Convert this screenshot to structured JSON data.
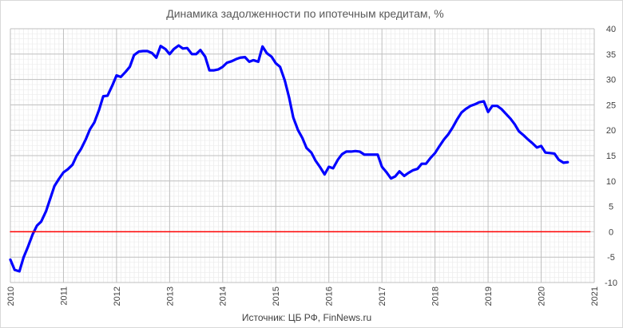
{
  "chart_data": {
    "type": "line",
    "title": "Динамика задолженности по ипотечным кредитам, %",
    "source": "Источник: ЦБ РФ, FinNews.ru",
    "xlim": [
      2010,
      2021
    ],
    "ylim": [
      -10,
      40
    ],
    "x_ticks": [
      "2010",
      "2011",
      "2012",
      "2013",
      "2014",
      "2015",
      "2016",
      "2017",
      "2018",
      "2019",
      "2020",
      "2021"
    ],
    "y_ticks": [
      "40",
      "35",
      "30",
      "25",
      "20",
      "15",
      "10",
      "5",
      "0",
      "-5",
      "-10"
    ],
    "grid": true,
    "y_axis_side": "right",
    "series": [
      {
        "color": "#0000ff",
        "x": [
          2010.0,
          2010.08,
          2010.17,
          2010.25,
          2010.33,
          2010.42,
          2010.5,
          2010.58,
          2010.67,
          2010.75,
          2010.83,
          2010.92,
          2011.0,
          2011.08,
          2011.17,
          2011.25,
          2011.33,
          2011.42,
          2011.5,
          2011.58,
          2011.67,
          2011.75,
          2011.83,
          2011.92,
          2012.0,
          2012.08,
          2012.17,
          2012.25,
          2012.33,
          2012.42,
          2012.5,
          2012.58,
          2012.67,
          2012.75,
          2012.83,
          2012.92,
          2013.0,
          2013.08,
          2013.17,
          2013.25,
          2013.33,
          2013.42,
          2013.5,
          2013.58,
          2013.67,
          2013.75,
          2013.83,
          2013.92,
          2014.0,
          2014.08,
          2014.17,
          2014.25,
          2014.33,
          2014.42,
          2014.5,
          2014.58,
          2014.67,
          2014.75,
          2014.83,
          2014.92,
          2015.0,
          2015.08,
          2015.17,
          2015.25,
          2015.33,
          2015.42,
          2015.5,
          2015.58,
          2015.67,
          2015.75,
          2015.83,
          2015.92,
          2016.0,
          2016.08,
          2016.17,
          2016.25,
          2016.33,
          2016.42,
          2016.5,
          2016.58,
          2016.67,
          2016.75,
          2016.83,
          2016.92,
          2017.0,
          2017.08,
          2017.17,
          2017.25,
          2017.33,
          2017.42,
          2017.5,
          2017.58,
          2017.67,
          2017.75,
          2017.83,
          2017.92,
          2018.0,
          2018.08,
          2018.17,
          2018.25,
          2018.33,
          2018.42,
          2018.5,
          2018.58,
          2018.67,
          2018.75,
          2018.83,
          2018.92,
          2019.0,
          2019.08,
          2019.17,
          2019.25,
          2019.33,
          2019.42,
          2019.5,
          2019.58,
          2019.67,
          2019.75,
          2019.83,
          2019.92,
          2020.0,
          2020.08,
          2020.17,
          2020.25,
          2020.33,
          2020.42,
          2020.5
        ],
        "y": [
          -5.5,
          -7.5,
          -7.8,
          -5.0,
          -3.0,
          -0.5,
          1.2,
          2.0,
          4.0,
          6.5,
          9.0,
          10.5,
          11.7,
          12.3,
          13.2,
          15.0,
          16.3,
          18.2,
          20.2,
          21.5,
          24.0,
          26.7,
          26.8,
          28.8,
          30.8,
          30.5,
          31.5,
          32.5,
          34.8,
          35.5,
          35.6,
          35.6,
          35.2,
          34.3,
          36.6,
          36.0,
          35.0,
          36.0,
          36.7,
          36.1,
          36.2,
          35.0,
          35.0,
          35.8,
          34.5,
          31.8,
          31.8,
          32.0,
          32.5,
          33.3,
          33.6,
          34.0,
          34.3,
          34.4,
          33.5,
          33.8,
          33.5,
          36.5,
          35.2,
          34.5,
          33.2,
          32.5,
          29.8,
          26.5,
          22.5,
          20.0,
          18.5,
          16.5,
          15.6,
          14.0,
          12.8,
          11.3,
          12.8,
          12.5,
          14.2,
          15.3,
          15.8,
          15.8,
          15.9,
          15.8,
          15.2,
          15.2,
          15.2,
          15.2,
          12.8,
          11.8,
          10.5,
          10.9,
          11.9,
          11.0,
          11.6,
          12.1,
          12.4,
          13.4,
          13.4,
          14.6,
          15.5,
          16.8,
          18.2,
          19.2,
          20.5,
          22.2,
          23.5,
          24.2,
          24.8,
          25.1,
          25.5,
          25.7,
          23.6,
          24.8,
          24.8,
          24.2,
          23.3,
          22.3,
          21.2,
          19.8,
          19.0,
          18.2,
          17.5,
          16.6,
          16.9,
          15.6,
          15.5,
          15.4,
          14.2,
          13.6,
          13.7
        ]
      },
      {
        "color": "#ff0000",
        "x": [
          2010.0,
          2020.92
        ],
        "y": [
          0,
          0
        ]
      }
    ]
  }
}
